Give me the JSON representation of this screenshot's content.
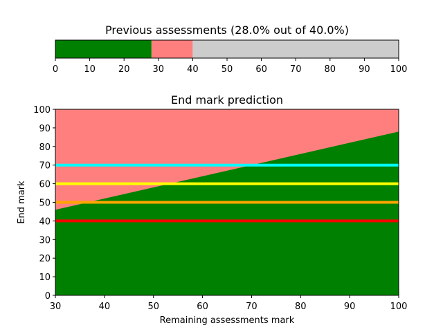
{
  "chart_data": [
    {
      "type": "bar",
      "orientation": "horizontal-stacked",
      "title": "Previous assessments (28.0% out of 40.0%)",
      "xlim": [
        0,
        100
      ],
      "xticks": [
        "0",
        "10",
        "20",
        "30",
        "40",
        "50",
        "60",
        "70",
        "80",
        "90",
        "100"
      ],
      "segments": [
        {
          "from": 0,
          "to": 28,
          "color": "#008000"
        },
        {
          "from": 28,
          "to": 40,
          "color": "#ff7f7f"
        },
        {
          "from": 40,
          "to": 100,
          "color": "#cccccc"
        }
      ]
    },
    {
      "type": "area",
      "title": "End mark prediction",
      "xlabel": "Remaining assessments mark",
      "ylabel": "End mark",
      "xlim": [
        30,
        100
      ],
      "ylim": [
        0,
        100
      ],
      "xticks": [
        "30",
        "40",
        "50",
        "60",
        "70",
        "80",
        "90",
        "100"
      ],
      "yticks": [
        "0",
        "10",
        "20",
        "30",
        "40",
        "50",
        "60",
        "70",
        "80",
        "90",
        "100"
      ],
      "background_color": "#ff7f7f",
      "area": {
        "color": "#008000",
        "x": [
          30,
          100
        ],
        "y": [
          46,
          88
        ]
      },
      "hlines": [
        {
          "y": 70,
          "color": "#00ffff"
        },
        {
          "y": 60,
          "color": "#ffff00"
        },
        {
          "y": 50,
          "color": "#ffa500"
        },
        {
          "y": 40,
          "color": "#ff0000"
        }
      ]
    }
  ]
}
